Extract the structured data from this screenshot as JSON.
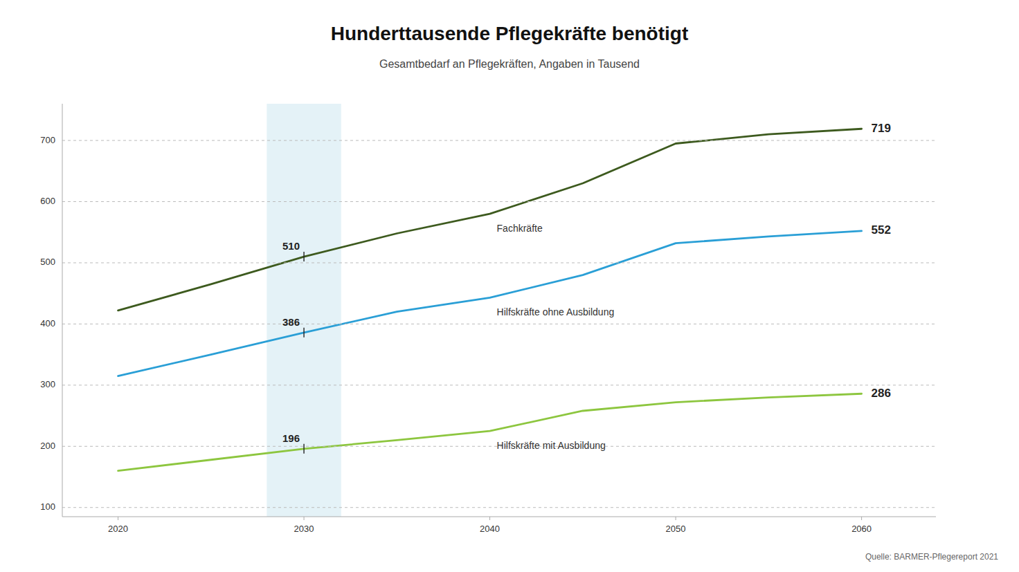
{
  "chart_data": {
    "type": "line",
    "title": "Hunderttausende Pflegekräfte benötigt",
    "subtitle": "Gesamtbedarf an Pflegekräften, Angaben in Tausend",
    "source": "Quelle: BARMER-Pflegereport 2021",
    "x": [
      2020,
      2025,
      2030,
      2035,
      2040,
      2045,
      2050,
      2055,
      2060
    ],
    "series": [
      {
        "name": "Fachkräfte",
        "color": "#3d5a1e",
        "values": [
          422,
          465,
          510,
          548,
          580,
          630,
          695,
          710,
          719
        ]
      },
      {
        "name": "Hilfskräfte ohne Ausbildung",
        "color": "#2a9fd6",
        "values": [
          315,
          350,
          386,
          420,
          443,
          480,
          532,
          543,
          552
        ]
      },
      {
        "name": "Hilfskräfte mit Ausbildung",
        "color": "#8dc63f",
        "values": [
          160,
          178,
          196,
          210,
          225,
          258,
          272,
          280,
          286
        ]
      }
    ],
    "annotations": [
      {
        "text": "510",
        "x": 2030,
        "y": 510
      },
      {
        "text": "386",
        "x": 2030,
        "y": 386
      },
      {
        "text": "196",
        "x": 2030,
        "y": 196
      },
      {
        "text": "719",
        "x": 2060,
        "y": 719
      },
      {
        "text": "552",
        "x": 2060,
        "y": 552
      },
      {
        "text": "286",
        "x": 2060,
        "y": 286
      }
    ],
    "highlight_x": [
      2028,
      2032
    ],
    "highlight_color": "#cde8f0",
    "xlim": [
      2017,
      2064
    ],
    "ylim": [
      85,
      760
    ],
    "xticks": [
      2020,
      2030,
      2040,
      2050,
      2060
    ],
    "yticks": [
      100,
      200,
      300,
      400,
      500,
      600,
      700
    ],
    "grid": true
  }
}
